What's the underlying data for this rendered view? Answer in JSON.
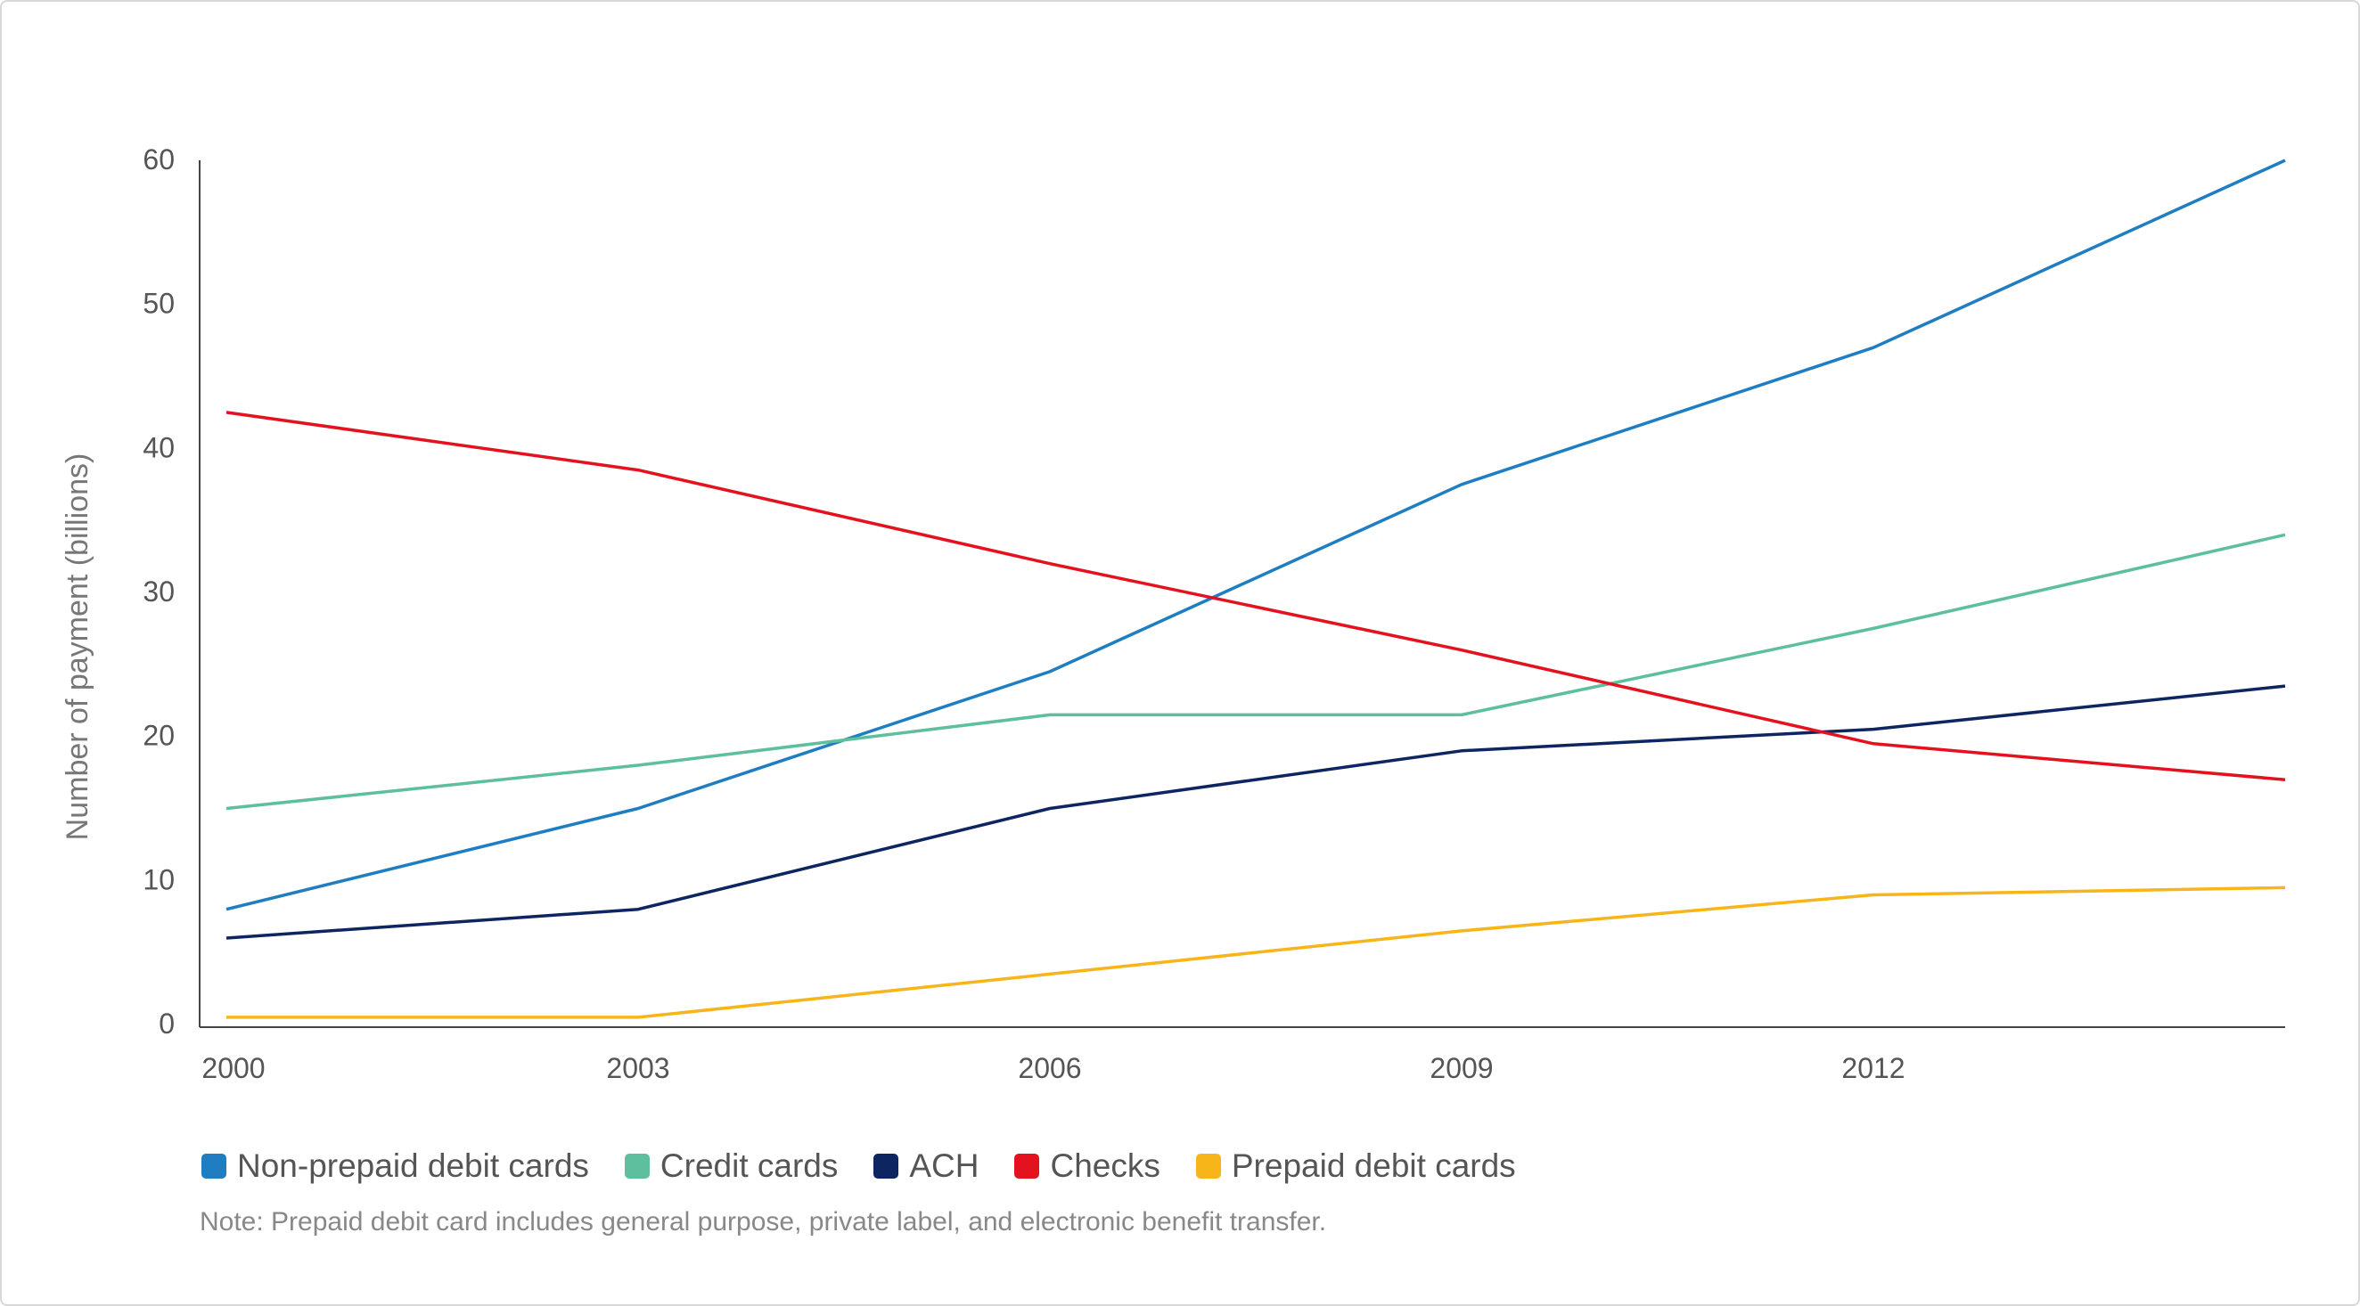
{
  "chart_data": {
    "type": "line",
    "ylabel": "Number of payment (billions)",
    "xlabel": "",
    "ylim": [
      0,
      60
    ],
    "y_ticks": [
      0,
      10,
      20,
      30,
      40,
      50,
      60
    ],
    "x_tick_labels": [
      "2000",
      "2003",
      "2006",
      "2009",
      "2012"
    ],
    "x": [
      2000,
      2003,
      2006,
      2009,
      2012,
      2015
    ],
    "series": [
      {
        "name": "Non-prepaid debit cards",
        "color": "#1f7ec1",
        "values": [
          8.0,
          15.0,
          24.5,
          37.5,
          47.0,
          60.0
        ]
      },
      {
        "name": "Credit cards",
        "color": "#5dbf9d",
        "values": [
          15.0,
          18.0,
          21.5,
          21.5,
          27.5,
          34.0
        ]
      },
      {
        "name": "ACH",
        "color": "#0d2560",
        "values": [
          6.0,
          8.0,
          15.0,
          19.0,
          20.5,
          23.5
        ]
      },
      {
        "name": "Checks",
        "color": "#e4111f",
        "values": [
          42.5,
          38.5,
          32.0,
          26.0,
          19.5,
          17.0
        ]
      },
      {
        "name": "Prepaid debit cards",
        "color": "#f7b51a",
        "values": [
          0.5,
          0.5,
          3.5,
          6.5,
          9.0,
          9.5
        ]
      }
    ],
    "legend_position": "bottom-left",
    "grid": false
  },
  "note": "Note: Prepaid debit card includes general purpose, private label, and electronic benefit transfer."
}
